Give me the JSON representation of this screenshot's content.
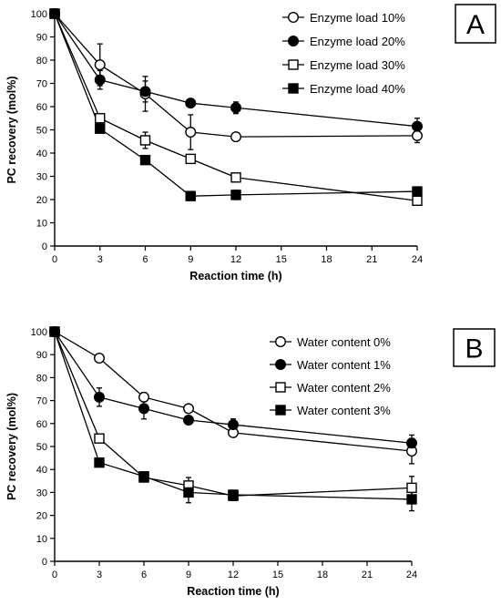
{
  "chart_data": [
    {
      "type": "line",
      "panel_label": "A",
      "xlabel": "Reaction time (h)",
      "ylabel": "PC recovery (mol%)",
      "xlim": [
        0,
        24
      ],
      "ylim": [
        0,
        100
      ],
      "xticks": [
        0,
        3,
        6,
        9,
        12,
        15,
        18,
        21,
        24
      ],
      "yticks": [
        0,
        10,
        20,
        30,
        40,
        50,
        60,
        70,
        80,
        90,
        100
      ],
      "grid": false,
      "legend_position": "top-right",
      "series": [
        {
          "name": "Enzyme load 10%",
          "marker": "circle-open",
          "x": [
            0,
            3,
            6,
            9,
            12,
            24
          ],
          "y": [
            100,
            78,
            65.5,
            49,
            47,
            47.5
          ],
          "err": [
            0,
            9,
            7.5,
            7.5,
            1.5,
            3
          ]
        },
        {
          "name": "Enzyme load 20%",
          "marker": "circle-filled",
          "x": [
            0,
            3,
            6,
            9,
            12,
            24
          ],
          "y": [
            100,
            71.5,
            66.5,
            61.5,
            59.5,
            51.5
          ],
          "err": [
            0,
            4,
            4.5,
            1.5,
            2.5,
            3.5
          ]
        },
        {
          "name": "Enzyme load 30%",
          "marker": "square-open",
          "x": [
            0,
            3,
            6,
            9,
            12,
            24
          ],
          "y": [
            100,
            55,
            45.5,
            37.5,
            29.5,
            19.5
          ],
          "err": [
            0,
            1.5,
            3.5,
            1.5,
            1.5,
            1.5
          ]
        },
        {
          "name": "Enzyme load 40%",
          "marker": "square-filled",
          "x": [
            0,
            3,
            6,
            9,
            12,
            24
          ],
          "y": [
            100,
            50.5,
            37,
            21.5,
            22,
            23.5
          ],
          "err": [
            0,
            1.5,
            1.5,
            1.5,
            2,
            1.5
          ]
        }
      ]
    },
    {
      "type": "line",
      "panel_label": "B",
      "xlabel": "Reaction time (h)",
      "ylabel": "PC recovery (mol%)",
      "xlim": [
        0,
        24
      ],
      "ylim": [
        0,
        100
      ],
      "xticks": [
        0,
        3,
        6,
        9,
        12,
        15,
        18,
        21,
        24
      ],
      "yticks": [
        0,
        10,
        20,
        30,
        40,
        50,
        60,
        70,
        80,
        90,
        100
      ],
      "grid": false,
      "legend_position": "top-right",
      "series": [
        {
          "name": "Water content 0%",
          "marker": "circle-open",
          "x": [
            0,
            3,
            6,
            9,
            12,
            24
          ],
          "y": [
            100,
            88.5,
            71.5,
            66.5,
            56,
            48
          ],
          "err": [
            0,
            1.5,
            2,
            1.5,
            1.5,
            5.5
          ]
        },
        {
          "name": "Water content 1%",
          "marker": "circle-filled",
          "x": [
            0,
            3,
            6,
            9,
            12,
            24
          ],
          "y": [
            100,
            71.5,
            66.5,
            61.5,
            59.5,
            51.5
          ],
          "err": [
            0,
            4,
            4.5,
            1.5,
            2.5,
            3.5
          ]
        },
        {
          "name": "Water content 2%",
          "marker": "square-open",
          "x": [
            0,
            3,
            6,
            9,
            12,
            24
          ],
          "y": [
            100,
            53.5,
            36.5,
            33,
            28.5,
            32
          ],
          "err": [
            0,
            1.5,
            1.5,
            3.5,
            2,
            5
          ]
        },
        {
          "name": "Water content 3%",
          "marker": "square-filled",
          "x": [
            0,
            3,
            6,
            9,
            12,
            24
          ],
          "y": [
            100,
            43,
            37,
            30,
            29,
            27
          ],
          "err": [
            0,
            1.5,
            1.5,
            4.5,
            1.5,
            5
          ]
        }
      ]
    }
  ]
}
